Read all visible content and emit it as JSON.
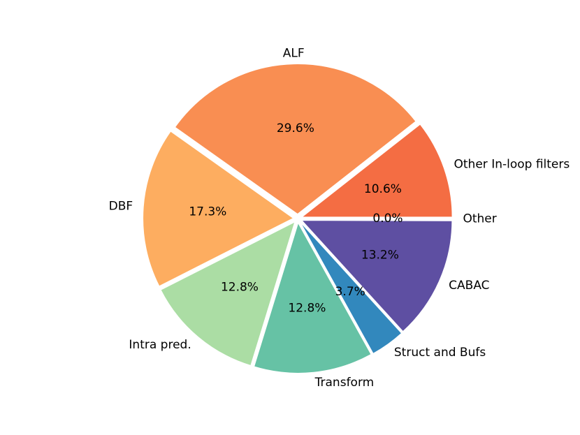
{
  "chart_data": {
    "type": "pie",
    "title": "",
    "slices": [
      {
        "label": "Other In-loop filters",
        "value": 10.6,
        "pct_text": "10.6%",
        "color": "#f46d43"
      },
      {
        "label": "ALF",
        "value": 29.6,
        "pct_text": "29.6%",
        "color": "#f98e52"
      },
      {
        "label": "DBF",
        "value": 17.3,
        "pct_text": "17.3%",
        "color": "#fdad60"
      },
      {
        "label": "Intra pred.",
        "value": 12.8,
        "pct_text": "12.8%",
        "color": "#abdda4"
      },
      {
        "label": "Transform",
        "value": 12.8,
        "pct_text": "12.8%",
        "color": "#66c2a5"
      },
      {
        "label": "Struct and Bufs",
        "value": 3.7,
        "pct_text": "3.7%",
        "color": "#3288bd"
      },
      {
        "label": "CABAC",
        "value": 13.2,
        "pct_text": "13.2%",
        "color": "#5e4fa2"
      },
      {
        "label": "Other",
        "value": 0.05,
        "pct_text": "0.0%",
        "color": "#e7a3c8"
      }
    ],
    "start_angle_deg": 0,
    "direction": "counterclockwise",
    "exploded": true
  }
}
